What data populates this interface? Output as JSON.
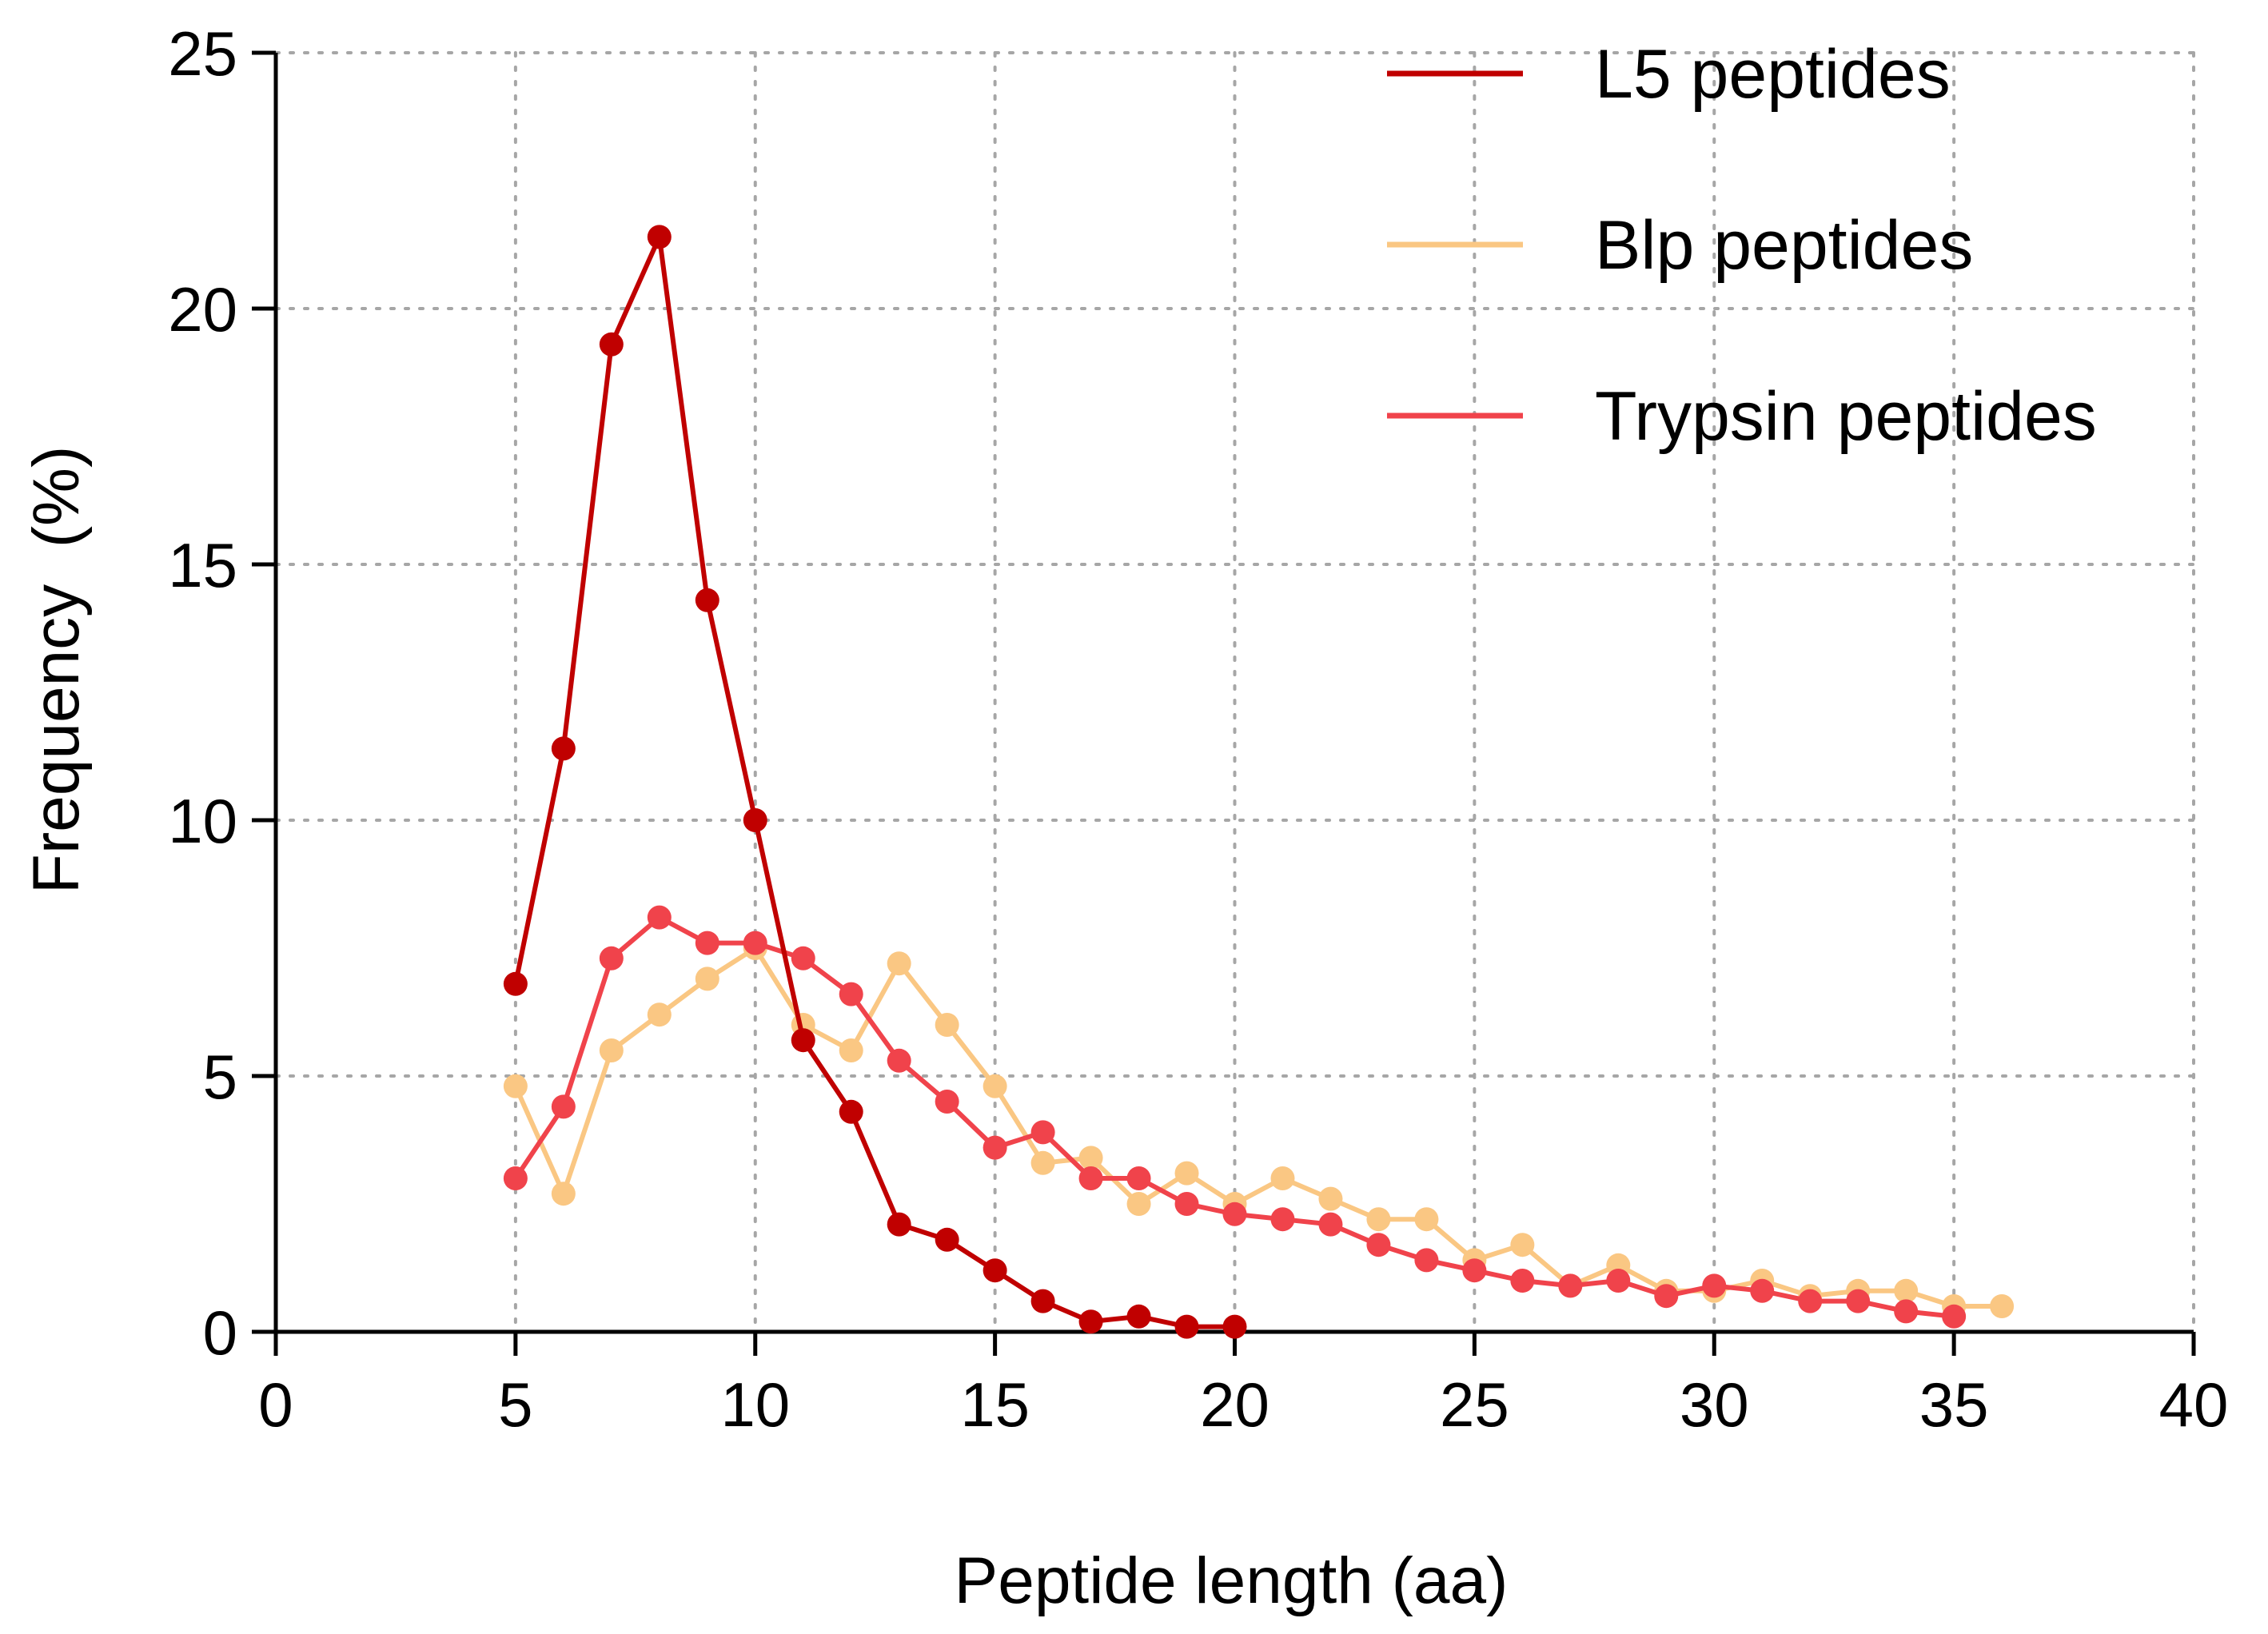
{
  "chart_data": {
    "type": "line",
    "title": "",
    "xlabel": "Peptide length (aa)",
    "ylabel": "Frequency  (%)",
    "xlim": [
      0,
      40
    ],
    "ylim": [
      0,
      25
    ],
    "xticks": [
      0,
      5,
      10,
      15,
      20,
      25,
      30,
      35,
      40
    ],
    "yticks": [
      0,
      5,
      10,
      15,
      20,
      25
    ],
    "xtick_labels": [
      "0",
      "5",
      "10",
      "15",
      "20",
      "25",
      "30",
      "35",
      "40"
    ],
    "ytick_labels": [
      "0",
      "5",
      "10",
      "15",
      "20",
      "25"
    ],
    "grid": "dotted",
    "legend_position": "top-right",
    "series": [
      {
        "name": "L5 peptides",
        "color": "#c00000",
        "x": [
          5,
          6,
          7,
          8,
          9,
          10,
          11,
          12,
          13,
          14,
          15,
          16,
          17,
          18,
          19,
          20
        ],
        "values": [
          6.8,
          11.4,
          19.3,
          21.4,
          14.3,
          10.0,
          5.7,
          4.3,
          2.1,
          1.8,
          1.2,
          0.6,
          0.2,
          0.3,
          0.1,
          0.1
        ]
      },
      {
        "name": "Blp peptides",
        "color": "#fac783",
        "x": [
          5,
          6,
          7,
          8,
          9,
          10,
          11,
          12,
          13,
          14,
          15,
          16,
          17,
          18,
          19,
          20,
          21,
          22,
          23,
          24,
          25,
          26,
          27,
          28,
          29,
          30,
          31,
          32,
          33,
          34,
          35,
          36
        ],
        "values": [
          4.8,
          2.7,
          5.5,
          6.2,
          6.9,
          7.5,
          6.0,
          5.5,
          7.2,
          6.0,
          4.8,
          3.3,
          3.4,
          2.5,
          3.1,
          2.5,
          3.0,
          2.6,
          2.2,
          2.2,
          1.4,
          1.7,
          0.9,
          1.3,
          0.8,
          0.8,
          1.0,
          0.7,
          0.8,
          0.8,
          0.5,
          0.5
        ]
      },
      {
        "name": "Trypsin peptides",
        "color": "#f0434b",
        "x": [
          5,
          6,
          7,
          8,
          9,
          10,
          11,
          12,
          13,
          14,
          15,
          16,
          17,
          18,
          19,
          20,
          21,
          22,
          23,
          24,
          25,
          26,
          27,
          28,
          29,
          30,
          31,
          32,
          33,
          34,
          35
        ],
        "values": [
          3.0,
          4.4,
          7.3,
          8.1,
          7.6,
          7.6,
          7.3,
          6.6,
          5.3,
          4.5,
          3.6,
          3.9,
          3.0,
          3.0,
          2.5,
          2.3,
          2.2,
          2.1,
          1.7,
          1.4,
          1.2,
          1.0,
          0.9,
          1.0,
          0.7,
          0.9,
          0.8,
          0.6,
          0.6,
          0.4,
          0.3
        ]
      }
    ]
  }
}
